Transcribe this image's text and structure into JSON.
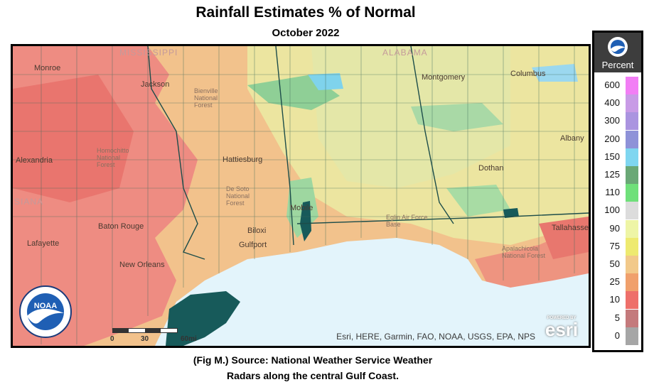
{
  "header": {
    "title": "Rainfall Estimates % of Normal",
    "subtitle": "October 2022"
  },
  "map": {
    "state_labels": [
      "MISSISSIPPI",
      "ALABAMA",
      "SIANA"
    ],
    "city_labels": [
      "Monroe",
      "Jackson",
      "Alexandria",
      "Hattiesburg",
      "Montgomery",
      "Columbus",
      "Albany",
      "Dothan",
      "Baton Rouge",
      "Lafayette",
      "New Orleans",
      "Biloxi",
      "Gulfport",
      "Mobile",
      "Tallahassee"
    ],
    "forest_labels": [
      "Bienville National Forest",
      "Homochitto National Forest",
      "De Soto National Forest",
      "Eglin Air Force Base",
      "Apalachicola National Forest"
    ],
    "attribution": "Esri, HERE, Garmin, FAO, NOAA, USGS, EPA, NPS",
    "esri_powered": "POWERED BY",
    "esri_word": "esri",
    "scale": {
      "start": "0",
      "mid": "30",
      "end": "60mi"
    },
    "noaa_text": "NOAA"
  },
  "legend": {
    "title": "Percent",
    "entries": [
      {
        "label": "600",
        "color": "#f27ef5"
      },
      {
        "label": "400",
        "color": "#c89be6"
      },
      {
        "label": "300",
        "color": "#aa94e0"
      },
      {
        "label": "200",
        "color": "#8e92d8"
      },
      {
        "label": "150",
        "color": "#7fd6f0"
      },
      {
        "label": "125",
        "color": "#6aa876"
      },
      {
        "label": "110",
        "color": "#6fe07a"
      },
      {
        "label": "100",
        "color": "#dcdcdc"
      },
      {
        "label": "90",
        "color": "#eef5a6"
      },
      {
        "label": "75",
        "color": "#eeea70"
      },
      {
        "label": "50",
        "color": "#f2c98a"
      },
      {
        "label": "25",
        "color": "#f0a06c"
      },
      {
        "label": "10",
        "color": "#ee6f6a"
      },
      {
        "label": "5",
        "color": "#c47a7c"
      },
      {
        "label": "0",
        "color": "#a6a6a6"
      }
    ]
  },
  "caption": {
    "line1": "(Fig M.) Source: National Weather Service Weather",
    "line2": "Radars along the central Gulf Coast."
  },
  "colors": {
    "gulf_water": "#e3f4fb",
    "low_red": "#ee8a80",
    "orange": "#f2c08a",
    "yellow": "#eee6a6",
    "green": "#9fd8a0",
    "coast_teal": "#175a5a"
  }
}
